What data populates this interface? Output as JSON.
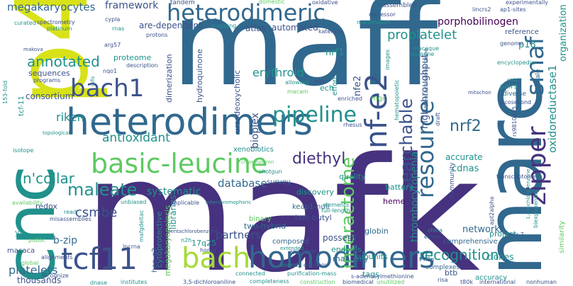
{
  "words": [
    {
      "text": "mafk",
      "color": "#46327e"
    },
    {
      "text": "maff",
      "color": "#31688e"
    },
    {
      "text": "p45",
      "color": "#d8e219"
    },
    {
      "text": "mare",
      "color": "#31688e"
    },
    {
      "text": "cnc",
      "color": "#21918c"
    },
    {
      "text": "heterodimers",
      "color": "#31688e"
    },
    {
      "text": "homodimers",
      "color": "#31688e"
    },
    {
      "text": "bach",
      "color": "#a5db36"
    },
    {
      "text": "tcf11",
      "color": "#3b528b"
    },
    {
      "text": "basic-leucine",
      "color": "#5ec962"
    },
    {
      "text": "heterodimeric",
      "color": "#31688e"
    },
    {
      "text": "bach1",
      "color": "#3b528b"
    },
    {
      "text": "nf-e2",
      "color": "#3b528b"
    },
    {
      "text": "zipper",
      "color": "#46327e"
    },
    {
      "text": "smaf",
      "color": "#31688e"
    },
    {
      "text": "resource",
      "color": "#31688e"
    },
    {
      "text": "searchable",
      "color": "#3b528b"
    },
    {
      "text": "interactome",
      "color": "#5ec962"
    },
    {
      "text": "pipeline",
      "color": "#21918c"
    },
    {
      "text": "nrf2",
      "color": "#31688e"
    },
    {
      "text": "maleate",
      "color": "#21918c"
    },
    {
      "text": "diethyl",
      "color": "#46327e"
    },
    {
      "text": "recognition",
      "color": "#21918c"
    },
    {
      "text": "n'collar",
      "color": "#21918c"
    },
    {
      "text": "csmbe",
      "color": "#3b528b"
    },
    {
      "text": "megakaryocytes",
      "color": "#31688e"
    },
    {
      "text": "annotated",
      "color": "#21918c"
    },
    {
      "text": "antioxidant",
      "color": "#21918c"
    },
    {
      "text": "framework",
      "color": "#3b528b"
    },
    {
      "text": "riken",
      "color": "#21918c"
    },
    {
      "text": "proplatelet",
      "color": "#21918c"
    },
    {
      "text": "erythroid",
      "color": "#21918c"
    },
    {
      "text": "porphobilinogen",
      "color": "#440154"
    },
    {
      "text": "oxidoreductase1",
      "color": "#21918c"
    },
    {
      "text": "organization",
      "color": "#21918c"
    },
    {
      "text": "platelets",
      "color": "#31688e"
    },
    {
      "text": "thousands",
      "color": "#3b528b"
    },
    {
      "text": "b-zip",
      "color": "#31688e"
    },
    {
      "text": "database",
      "color": "#31688e"
    },
    {
      "text": "systematic",
      "color": "#21918c"
    },
    {
      "text": "partners",
      "color": "#3b528b"
    },
    {
      "text": "networks",
      "color": "#31688e"
    },
    {
      "text": "cdnas",
      "color": "#21918c"
    },
    {
      "text": "accurate",
      "color": "#21918c"
    },
    {
      "text": "p18",
      "color": "#21918c"
    },
    {
      "text": "high-throughput",
      "color": "#3b528b"
    },
    {
      "text": "thrombocytopenia",
      "color": "#21918c"
    },
    {
      "text": "nfe2",
      "color": "#3b528b"
    },
    {
      "text": "nrf1",
      "color": "#21918c"
    },
    {
      "text": "automated",
      "color": "#3b528b"
    },
    {
      "text": "atlas",
      "color": "#3b528b"
    },
    {
      "text": "are-dependent",
      "color": "#3b528b"
    },
    {
      "text": "dimerization",
      "color": "#3b528b"
    },
    {
      "text": "hydroquinone",
      "color": "#3b528b"
    },
    {
      "text": "bioplex",
      "color": "#3b528b"
    },
    {
      "text": "xenobiotics",
      "color": "#21918c"
    },
    {
      "text": "ursodeoxycholic",
      "color": "#3b528b"
    },
    {
      "text": "keap1-null",
      "color": "#31688e"
    },
    {
      "text": "tert-butyl",
      "color": "#3b528b"
    },
    {
      "text": "discovery",
      "color": "#21918c"
    },
    {
      "text": "libraries",
      "color": "#21918c"
    },
    {
      "text": "quality",
      "color": "#21918c"
    },
    {
      "text": "survey",
      "color": "#31688e"
    },
    {
      "text": "globin",
      "color": "#31688e"
    },
    {
      "text": "heme",
      "color": "#440154"
    },
    {
      "text": "battery",
      "color": "#21918c"
    },
    {
      "text": "possess",
      "color": "#3b528b"
    },
    {
      "text": "binary",
      "color": "#5ec962"
    },
    {
      "text": "two-hybrid",
      "color": "#31688e"
    },
    {
      "text": "enables",
      "color": "#21918c"
    },
    {
      "text": "manually",
      "color": "#31688e"
    },
    {
      "text": "composed",
      "color": "#31688e"
    },
    {
      "text": "subunits",
      "color": "#21918c"
    },
    {
      "text": "tags",
      "color": "#21918c"
    },
    {
      "text": "btb",
      "color": "#3b528b"
    },
    {
      "text": "clones",
      "color": "#21918c"
    },
    {
      "text": "project",
      "color": "#21918c"
    },
    {
      "text": "accuracy",
      "color": "#21918c"
    },
    {
      "text": "comprehensive",
      "color": "#31688e"
    },
    {
      "text": "complexes",
      "color": "#31688e"
    },
    {
      "text": "cytoprotective",
      "color": "#21918c"
    },
    {
      "text": "megakaryopoiesis",
      "color": "#5ec962"
    },
    {
      "text": "proteome",
      "color": "#21918c"
    },
    {
      "text": "consortium",
      "color": "#3b528b"
    },
    {
      "text": "sequences",
      "color": "#3b528b"
    },
    {
      "text": "redox",
      "color": "#3b528b"
    },
    {
      "text": "17q25",
      "color": "#21918c"
    },
    {
      "text": "macaca",
      "color": "#3b528b"
    },
    {
      "text": "ya",
      "color": "#21918c"
    },
    {
      "text": "hep-g2",
      "color": "#31688e"
    },
    {
      "text": "tandem",
      "color": "#3b528b"
    },
    {
      "text": "domestic",
      "color": "#5ec962"
    },
    {
      "text": "oxidative",
      "color": "#3b528b"
    },
    {
      "text": "experimentally",
      "color": "#3b528b"
    },
    {
      "text": "assembled",
      "color": "#3b528b"
    },
    {
      "text": "lincrs2",
      "color": "#3b528b"
    },
    {
      "text": "ap1-sites",
      "color": "#3b528b"
    },
    {
      "text": "repressor",
      "color": "#3b528b"
    },
    {
      "text": "mammalian",
      "color": "#21918c"
    },
    {
      "text": "kateryna",
      "color": "#3b528b"
    },
    {
      "text": "reference",
      "color": "#3b528b"
    },
    {
      "text": "genome",
      "color": "#3b528b"
    },
    {
      "text": "macaque",
      "color": "#21918c"
    },
    {
      "text": "encyclopedia",
      "color": "#21918c"
    },
    {
      "text": "quinone",
      "color": "#21918c"
    },
    {
      "text": "mapping",
      "color": "#21918c"
    },
    {
      "text": "protons",
      "color": "#3b528b"
    },
    {
      "text": "cypla",
      "color": "#3b528b"
    },
    {
      "text": "rnas",
      "color": "#21918c"
    },
    {
      "text": "arg57",
      "color": "#3b528b"
    },
    {
      "text": "description",
      "color": "#3b528b"
    },
    {
      "text": "nqo1",
      "color": "#3b528b"
    },
    {
      "text": "curated",
      "color": "#21918c"
    },
    {
      "text": "spectrometry",
      "color": "#3b528b"
    },
    {
      "text": "platinum",
      "color": "#21918c"
    },
    {
      "text": "makova",
      "color": "#3b528b"
    },
    {
      "text": "programs",
      "color": "#3b528b"
    },
    {
      "text": "infls",
      "color": "#21918c"
    },
    {
      "text": "hlpn",
      "color": "#3b528b"
    },
    {
      "text": "ech",
      "color": "#21918c"
    },
    {
      "text": "effort",
      "color": "#21918c"
    },
    {
      "text": "mgc",
      "color": "#5ec962"
    },
    {
      "text": "allowing",
      "color": "#21918c"
    },
    {
      "text": "macam",
      "color": "#5ec962"
    },
    {
      "text": "enriched",
      "color": "#3b528b"
    },
    {
      "text": "rhesus",
      "color": "#3b528b"
    },
    {
      "text": "draft",
      "color": "#3b528b"
    },
    {
      "text": "pentachlorobenzene",
      "color": "#31688e"
    },
    {
      "text": "images",
      "color": "#21918c"
    },
    {
      "text": "hematopoietic",
      "color": "#21918c"
    },
    {
      "text": "small-scale",
      "color": "#31688e"
    },
    {
      "text": "picosecond",
      "color": "#3b528b"
    },
    {
      "text": "diverse",
      "color": "#31688e"
    },
    {
      "text": "pairs",
      "color": "#21918c"
    },
    {
      "text": "community",
      "color": "#3b528b"
    },
    {
      "text": "transcriptome",
      "color": "#3b528b"
    },
    {
      "text": "rs9810915",
      "color": "#3b528b"
    },
    {
      "text": "1,4-dichlorobenzene",
      "color": "#21918c"
    },
    {
      "text": "biexponential",
      "color": "#21918c"
    },
    {
      "text": "similarity",
      "color": "#5ec962"
    },
    {
      "text": "mir-7",
      "color": "#3b528b"
    },
    {
      "text": "international",
      "color": "#3b528b"
    },
    {
      "text": "nonhuman",
      "color": "#3b528b"
    },
    {
      "text": "t80k",
      "color": "#3b528b"
    },
    {
      "text": "risa",
      "color": "#3b528b"
    },
    {
      "text": "s-adenosylmethionine",
      "color": "#3b528b"
    },
    {
      "text": "biomedical",
      "color": "#3b528b"
    },
    {
      "text": "unutilized",
      "color": "#5ec962"
    },
    {
      "text": "construction",
      "color": "#5ec962"
    },
    {
      "text": "completeness",
      "color": "#21918c"
    },
    {
      "text": "3,5-dichloroaniline",
      "color": "#3b528b"
    },
    {
      "text": "institutes",
      "color": "#21918c"
    },
    {
      "text": "dnase",
      "color": "#21918c"
    },
    {
      "text": "lncrna",
      "color": "#3b528b"
    },
    {
      "text": "connected",
      "color": "#21918c"
    },
    {
      "text": "purification-mass",
      "color": "#21918c"
    },
    {
      "text": "ontology",
      "color": "#3b528b"
    },
    {
      "text": "bound",
      "color": "#21918c"
    },
    {
      "text": "apmafg6f",
      "color": "#3b528b"
    },
    {
      "text": "extended",
      "color": "#21918c"
    },
    {
      "text": "elements",
      "color": "#21918c"
    },
    {
      "text": "full-length",
      "color": "#21918c"
    },
    {
      "text": "shotgun",
      "color": "#21918c"
    },
    {
      "text": "chlorotoluron",
      "color": "#5ec962"
    },
    {
      "text": "applicable",
      "color": "#3b528b"
    },
    {
      "text": "interchromophoric",
      "color": "#21918c"
    },
    {
      "text": "unbiased",
      "color": "#21918c"
    },
    {
      "text": "availability",
      "color": "#5ec962"
    },
    {
      "text": "read",
      "color": "#21918c"
    },
    {
      "text": "misassemblies",
      "color": "#3b528b"
    },
    {
      "text": "recognize",
      "color": "#3b528b"
    },
    {
      "text": "alignments",
      "color": "#3b528b"
    },
    {
      "text": "topological",
      "color": "#21918c"
    },
    {
      "text": "isotope",
      "color": "#21918c"
    },
    {
      "text": "153-fold",
      "color": "#21918c"
    },
    {
      "text": "tcf-11",
      "color": "#21918c"
    },
    {
      "text": "mafgdeltac",
      "color": "#21918c"
    },
    {
      "text": "chica",
      "color": "#21918c"
    },
    {
      "text": "errors",
      "color": "#3b528b"
    },
    {
      "text": "t-n2g",
      "color": "#3b528b"
    },
    {
      "text": "mitochon",
      "color": "#3b528b"
    },
    {
      "text": "apt2alpha",
      "color": "#3b528b"
    },
    {
      "text": "ontc",
      "color": "#21918c"
    },
    {
      "text": "global",
      "color": "#5ec962"
    },
    {
      "text": "public",
      "color": "#5ec962"
    },
    {
      "text": "n2h",
      "color": "#21918c"
    },
    {
      "text": "homo",
      "color": "#3b528b"
    },
    {
      "text": "pentachlorobenzene",
      "color": "#3b528b"
    }
  ]
}
